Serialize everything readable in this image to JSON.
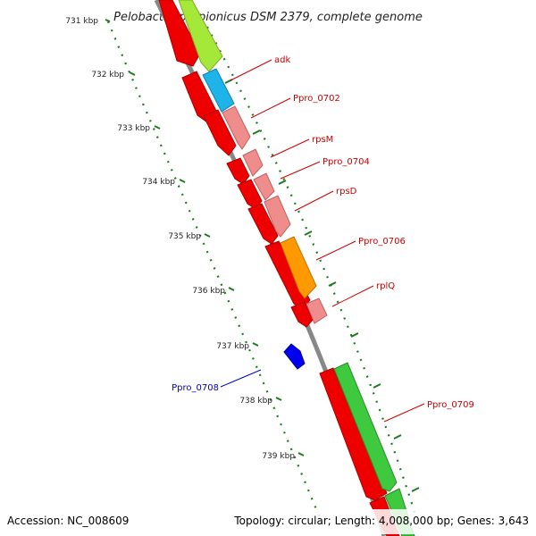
{
  "title": "Pelobacter propionicus DSM 2379, complete genome",
  "footer": {
    "accession": "Accession: NC_008609",
    "summary": "Topology: circular; Length: 4,008,000 bp; Genes: 3,643"
  },
  "colors": {
    "backbone": "#888888",
    "tick_dots": "#1f7a1f",
    "label_red": "#cc0000",
    "label_blue": "#0000cc"
  },
  "ruler": [
    {
      "label": "731 kbp"
    },
    {
      "label": "732 kbp"
    },
    {
      "label": "733 kbp"
    },
    {
      "label": "734 kbp"
    },
    {
      "label": "735 kbp"
    },
    {
      "label": "736 kbp"
    },
    {
      "label": "737 kbp"
    },
    {
      "label": "738 kbp"
    },
    {
      "label": "739 kbp"
    }
  ],
  "genes": [
    {
      "name": "adk",
      "strand": "+",
      "color": "#a6e83a"
    },
    {
      "name": "Ppro_0702",
      "strand": "+",
      "color": "#1eb4ea"
    },
    {
      "name": "rpsM",
      "strand": "+",
      "color": "#ef8c8c"
    },
    {
      "name": "Ppro_0704",
      "strand": "+",
      "color": "#ef8c8c"
    },
    {
      "name": "rpsD",
      "strand": "+",
      "color": "#ef8c8c"
    },
    {
      "name": "Ppro_0706",
      "strand": "+",
      "color": "#ff9900"
    },
    {
      "name": "rplQ",
      "strand": "+",
      "color": "#ef8c8c"
    },
    {
      "name": "Ppro_0708",
      "strand": "-",
      "color": "#0000ee"
    },
    {
      "name": "Ppro_0709",
      "strand": "+",
      "color": "#3ec93e"
    }
  ]
}
